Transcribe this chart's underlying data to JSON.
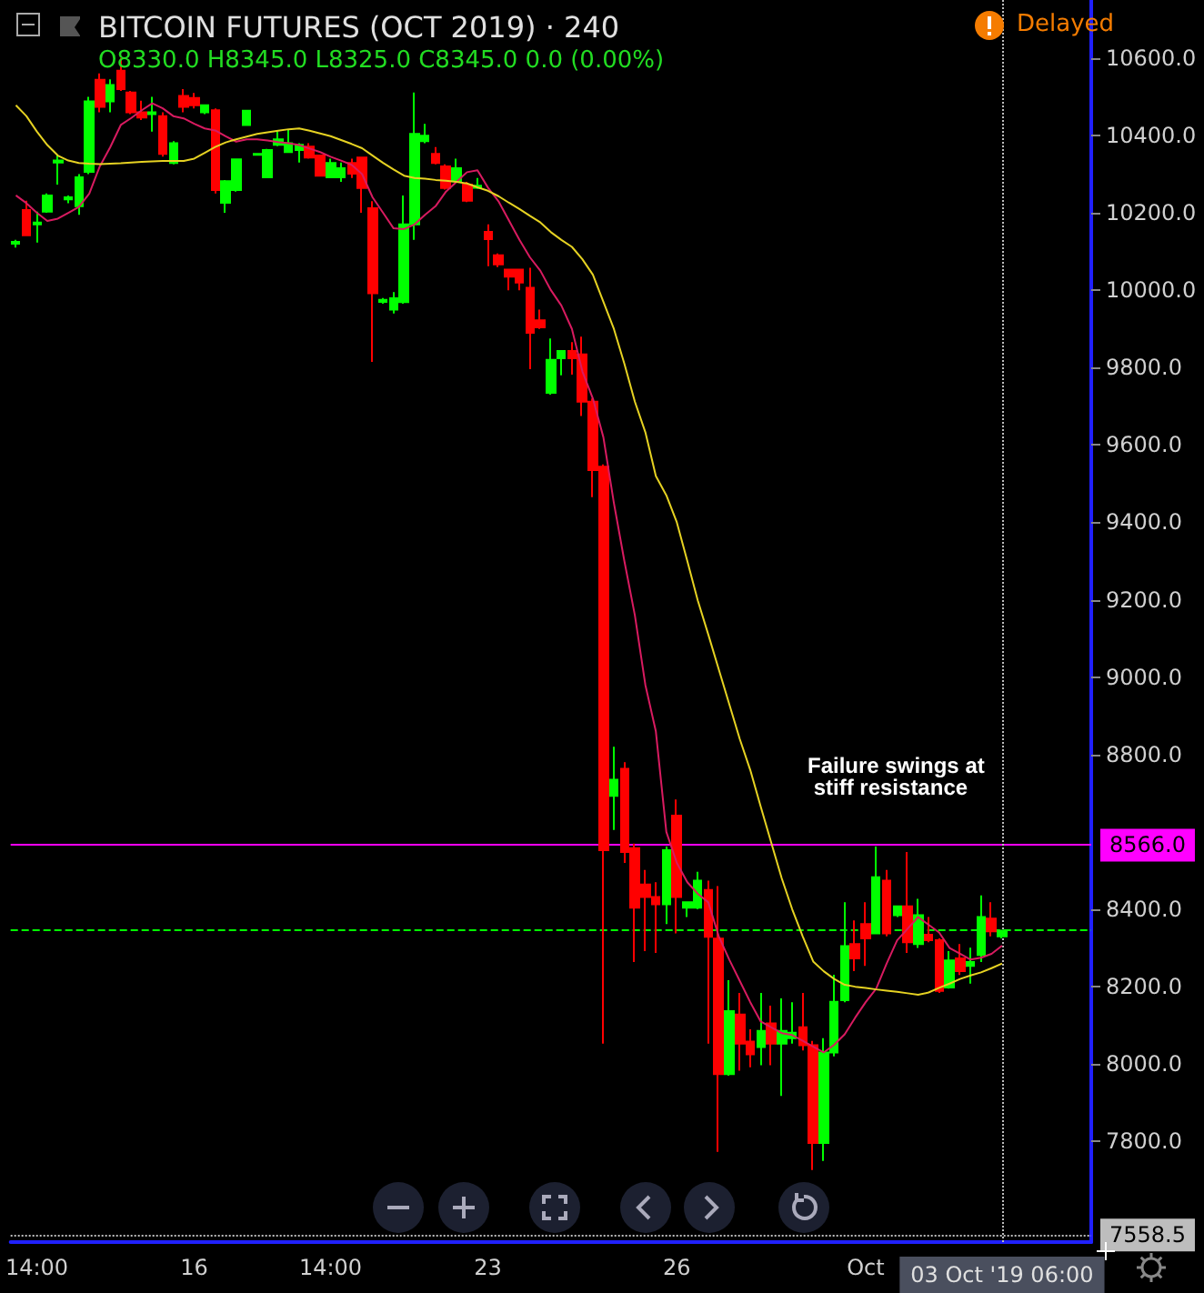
{
  "chart_data": {
    "type": "candlestick",
    "title": "BITCOIN FUTURES (OCT 2019) · 240",
    "subtitle": "O8330.0 H8345.0 L8325.0 C8345.0 0.0 (0.00%)",
    "annotations": [
      "Failure swings at stiff resistance",
      "Delayed"
    ],
    "categories": [
      null,
      null,
      "14:00",
      null,
      null,
      null,
      null,
      null,
      null,
      null,
      null,
      null,
      null,
      null,
      null,
      null,
      null,
      "16",
      null,
      null,
      null,
      null,
      null,
      null,
      null,
      null,
      null,
      null,
      null,
      null,
      "14:00",
      null,
      null,
      null,
      null,
      null,
      null,
      null,
      null,
      null,
      null,
      null,
      null,
      null,
      null,
      "23",
      null,
      null,
      null,
      null,
      null,
      null,
      null,
      null,
      null,
      null,
      null,
      null,
      null,
      null,
      null,
      null,
      null,
      "26",
      null,
      null,
      null,
      null,
      null,
      null,
      null,
      null,
      null,
      null,
      null,
      null,
      null,
      null,
      null,
      null,
      null,
      "Oct",
      null,
      null,
      null,
      null,
      null,
      null,
      null,
      null,
      null,
      null,
      null,
      null,
      "03 Oct '19 06:00"
    ],
    "series": [
      {
        "colors": [
          "#00ff00",
          "#ff0000",
          "#00ff00",
          "#00ff00",
          "#00ff00",
          "#00ff00",
          "#00ff00",
          "#00ff00",
          "#ff0000",
          "#00ff00",
          "#ff0000",
          "#ff0000",
          "#ff0000",
          "#00ff00",
          "#ff0000",
          "#00ff00",
          "#ff0000",
          "#ff0000",
          "#00ff00",
          "#ff0000",
          "#00ff00",
          "#00ff00",
          "#00ff00",
          "#00ff00",
          "#00ff00",
          "#00ff00",
          "#00ff00",
          "#00ff00",
          "#ff0000",
          "#ff0000",
          "#00ff00",
          "#00ff00",
          "#ff0000",
          "#ff0000",
          "#ff0000",
          "#00ff00",
          "#00ff00",
          "#00ff00",
          "#00ff00",
          "#00ff00",
          "#ff0000",
          "#ff0000",
          "#00ff00",
          "#ff0000",
          "#00ff00",
          "#ff0000",
          "#ff0000",
          "#ff0000",
          "#ff0000",
          "#ff0000",
          "#ff0000",
          "#00ff00",
          "#00ff00",
          "#ff0000",
          "#ff0000",
          "#ff0000",
          "#ff0000",
          "#00ff00",
          "#ff0000",
          "#ff0000",
          "#ff0000",
          "#ff0000",
          "#00ff00",
          "#ff0000",
          "#00ff00",
          "#00ff00",
          "#ff0000",
          "#ff0000",
          "#00ff00",
          "#ff0000",
          "#ff0000",
          "#00ff00",
          "#ff0000",
          "#00ff00",
          "#00ff00",
          "#ff0000",
          "#ff0000",
          "#00ff00",
          "#00ff00",
          "#00ff00",
          "#ff0000",
          "#ff0000",
          "#00ff00",
          "#ff0000",
          "#00ff00",
          "#ff0000",
          "#00ff00",
          "#ff0000",
          "#ff0000",
          "#00ff00",
          "#ff0000",
          "#00ff00",
          "#00ff00",
          "#ff0000",
          "#00ff00"
        ],
        "ohlc": [
          [
            10120,
            10130,
            10110,
            10125
          ],
          [
            10207,
            10231,
            10140,
            10142
          ],
          [
            10170,
            10203,
            10123,
            10175
          ],
          [
            10203,
            10250,
            10200,
            10245
          ],
          [
            10330,
            10350,
            10273,
            10335
          ],
          [
            10235,
            10245,
            10225,
            10240
          ],
          [
            10217,
            10300,
            10195,
            10292
          ],
          [
            10306,
            10500,
            10300,
            10488
          ],
          [
            10544,
            10560,
            10460,
            10474
          ],
          [
            10488,
            10545,
            10460,
            10530
          ],
          [
            10567,
            10600,
            10515,
            10520
          ],
          [
            10511,
            10515,
            10455,
            10460
          ],
          [
            10460,
            10490,
            10440,
            10446
          ],
          [
            10455,
            10500,
            10410,
            10460
          ],
          [
            10450,
            10460,
            10345,
            10352
          ],
          [
            10329,
            10385,
            10325,
            10380
          ],
          [
            10502,
            10520,
            10460,
            10474
          ],
          [
            10497,
            10510,
            10470,
            10478
          ],
          [
            10460,
            10480,
            10455,
            10478
          ],
          [
            10465,
            10470,
            10250,
            10259
          ],
          [
            10226,
            10285,
            10200,
            10282
          ],
          [
            10259,
            10340,
            10255,
            10338
          ],
          [
            10427,
            10466,
            10425,
            10464
          ],
          [
            10350,
            10354,
            10348,
            10352
          ],
          [
            10292,
            10365,
            10290,
            10362
          ],
          [
            10376,
            10410,
            10372,
            10390
          ],
          [
            10357,
            10415,
            10355,
            10380
          ],
          [
            10362,
            10380,
            10330,
            10376
          ],
          [
            10371,
            10380,
            10340,
            10343
          ],
          [
            10348,
            10350,
            10294,
            10296
          ],
          [
            10292,
            10340,
            10290,
            10329
          ],
          [
            10292,
            10330,
            10280,
            10315
          ],
          [
            10329,
            10340,
            10290,
            10301
          ],
          [
            10343,
            10345,
            10200,
            10264
          ],
          [
            10212,
            10230,
            9815,
            9992
          ],
          [
            9970,
            9980,
            9965,
            9975
          ],
          [
            9950,
            9995,
            9940,
            9979
          ],
          [
            9969,
            10245,
            9965,
            10170
          ],
          [
            10170,
            10511,
            10130,
            10404
          ],
          [
            10385,
            10430,
            10380,
            10399
          ],
          [
            10352,
            10370,
            10325,
            10329
          ],
          [
            10320,
            10325,
            10260,
            10264
          ],
          [
            10282,
            10340,
            10280,
            10315
          ],
          [
            10273,
            10280,
            10228,
            10231
          ],
          [
            10265,
            10290,
            10262,
            10270
          ],
          [
            10151,
            10170,
            10062,
            10132
          ],
          [
            10090,
            10095,
            10060,
            10067
          ],
          [
            10053,
            10055,
            10000,
            10035
          ],
          [
            10053,
            10055,
            10000,
            10020
          ],
          [
            10006,
            10058,
            9796,
            9890
          ],
          [
            9922,
            9950,
            9900,
            9904
          ],
          [
            9735,
            9875,
            9730,
            9820
          ],
          [
            9824,
            9845,
            9780,
            9843
          ],
          [
            9843,
            9866,
            9782,
            9824
          ],
          [
            9834,
            9880,
            9675,
            9712
          ],
          [
            9712,
            9720,
            9465,
            9535
          ],
          [
            9544,
            9550,
            8053,
            8553
          ],
          [
            8693,
            8820,
            8605,
            8735
          ],
          [
            8763,
            8780,
            8520,
            8548
          ],
          [
            8558,
            8570,
            8264,
            8404
          ],
          [
            8464,
            8502,
            8292,
            8432
          ],
          [
            8432,
            8470,
            8287,
            8413
          ],
          [
            8413,
            8562,
            8362,
            8553
          ],
          [
            8642,
            8684,
            8338,
            8432
          ],
          [
            8404,
            8420,
            8380,
            8418
          ],
          [
            8404,
            8497,
            8400,
            8474
          ],
          [
            8450,
            8474,
            8053,
            8329
          ],
          [
            8324,
            8460,
            7773,
            7974
          ],
          [
            7974,
            8217,
            7970,
            8137
          ],
          [
            8128,
            8184,
            7983,
            8053
          ],
          [
            8058,
            8090,
            7992,
            8025
          ],
          [
            8044,
            8184,
            7997,
            8086
          ],
          [
            8105,
            8151,
            7997,
            8053
          ],
          [
            8053,
            8170,
            7918,
            8086
          ],
          [
            8067,
            8160,
            8053,
            8081
          ],
          [
            8095,
            8184,
            8035,
            8049
          ],
          [
            8049,
            8060,
            7726,
            7796
          ],
          [
            7796,
            8067,
            7750,
            8030
          ],
          [
            8030,
            8231,
            8020,
            8161
          ],
          [
            8165,
            8418,
            8160,
            8305
          ],
          [
            8310,
            8371,
            8240,
            8273
          ],
          [
            8362,
            8418,
            8254,
            8325
          ],
          [
            8338,
            8562,
            8338,
            8483
          ],
          [
            8474,
            8502,
            8330,
            8338
          ],
          [
            8385,
            8410,
            8380,
            8408
          ],
          [
            8408,
            8548,
            8287,
            8315
          ],
          [
            8310,
            8427,
            8300,
            8385
          ],
          [
            8334,
            8380,
            8315,
            8320
          ],
          [
            8320,
            8325,
            8184,
            8189
          ],
          [
            8198,
            8292,
            8195,
            8268
          ],
          [
            8273,
            8310,
            8230,
            8240
          ],
          [
            8254,
            8301,
            8208,
            8264
          ],
          [
            8282,
            8436,
            8264,
            8380
          ],
          [
            8376,
            8418,
            8330,
            8343
          ],
          [
            8330,
            8345,
            8325,
            8345
          ]
        ]
      },
      {
        "type": "line",
        "color": "#d81b60",
        "values": [
          10245,
          10225,
          10200,
          10179,
          10185,
          10200,
          10215,
          10250,
          10320,
          10370,
          10427,
          10445,
          10465,
          10483,
          10470,
          10450,
          10444,
          10430,
          10418,
          10413,
          10398,
          10384,
          10390,
          10390,
          10387,
          10383,
          10380,
          10375,
          10366,
          10357,
          10345,
          10335,
          10324,
          10300,
          10240,
          10200,
          10160,
          10158,
          10170,
          10195,
          10217,
          10255,
          10280,
          10305,
          10310,
          10265,
          10230,
          10180,
          10130,
          10085,
          10050,
          10000,
          9960,
          9900,
          9790,
          9720,
          9620,
          9450,
          9300,
          9160,
          8980,
          8860,
          8600,
          8520,
          8470,
          8440,
          8418,
          8330,
          8270,
          8215,
          8160,
          8110,
          8095,
          8080,
          8075,
          8060,
          8045,
          8030,
          8050,
          8077,
          8120,
          8160,
          8195,
          8260,
          8320,
          8350,
          8380,
          8360,
          8340,
          8300,
          8285,
          8270,
          8275,
          8285,
          8306
        ]
      },
      {
        "type": "line",
        "color": "#e6d222",
        "values": [
          10478,
          10450,
          10410,
          10375,
          10348,
          10335,
          10329,
          10327,
          10326,
          10327,
          10328,
          10330,
          10332,
          10333,
          10334,
          10334,
          10334,
          10340,
          10355,
          10370,
          10382,
          10390,
          10397,
          10404,
          10408,
          10412,
          10416,
          10418,
          10412,
          10405,
          10398,
          10388,
          10378,
          10367,
          10348,
          10329,
          10312,
          10296,
          10290,
          10288,
          10285,
          10283,
          10280,
          10276,
          10266,
          10257,
          10243,
          10226,
          10210,
          10192,
          10175,
          10150,
          10130,
          10112,
          10080,
          10040,
          9970,
          9900,
          9810,
          9712,
          9633,
          9520,
          9470,
          9400,
          9300,
          9198,
          9110,
          9020,
          8930,
          8840,
          8760,
          8665,
          8572,
          8480,
          8400,
          8330,
          8265,
          8240,
          8220,
          8205,
          8200,
          8197,
          8193,
          8190,
          8187,
          8183,
          8179,
          8185,
          8197,
          8208,
          8220,
          8229,
          8237,
          8248,
          8260
        ]
      }
    ],
    "ylim": [
      7540,
      10750
    ],
    "yticks": [
      {
        "value": 7800,
        "label": "7800.0"
      },
      {
        "value": 8000,
        "label": "8000.0"
      },
      {
        "value": 8200,
        "label": "8200.0"
      },
      {
        "value": 8400,
        "label": "8400.0"
      },
      {
        "value": 8800,
        "label": "8800.0"
      },
      {
        "value": 9000,
        "label": "9000.0"
      },
      {
        "value": 9200,
        "label": "9200.0"
      },
      {
        "value": 9400,
        "label": "9400.0"
      },
      {
        "value": 9600,
        "label": "9600.0"
      },
      {
        "value": 9800,
        "label": "9800.0"
      },
      {
        "value": 10000,
        "label": "10000.0"
      },
      {
        "value": 10200,
        "label": "10200.0"
      },
      {
        "value": 10400,
        "label": "10400.0"
      },
      {
        "value": 10600,
        "label": "10600.0"
      }
    ],
    "ref_lines": [
      {
        "axis": "y",
        "value": 8566,
        "label": "8566.0",
        "color": "#ff00ff",
        "line_style": "solid"
      },
      {
        "axis": "y",
        "value": 8345,
        "color": "#00ff00",
        "line_style": "dashed"
      },
      {
        "axis": "y",
        "value": 7558.5,
        "label": "7558.5",
        "color": "#bdbdbd",
        "line_style": "dotted"
      },
      {
        "axis": "x",
        "value": "03 Oct '19 06:00",
        "color": "#bdbdbd",
        "line_style": "dotted"
      }
    ],
    "grid": false
  }
}
